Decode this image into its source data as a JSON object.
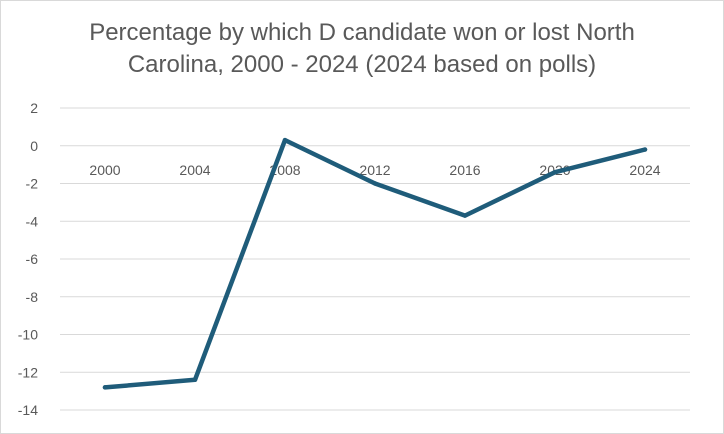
{
  "chart_data": {
    "type": "line",
    "title_lines": [
      "Percentage by which D candidate won or lost North",
      "Carolina, 2000 - 2024 (2024 based on polls)"
    ],
    "xlabel": "",
    "ylabel": "",
    "categories": [
      "2000",
      "2004",
      "2008",
      "2012",
      "2016",
      "2020",
      "2024"
    ],
    "series": [
      {
        "values": [
          -12.8,
          -12.4,
          0.3,
          -2.0,
          -3.7,
          -1.4,
          -0.2
        ]
      }
    ],
    "ylim": [
      -14,
      2
    ],
    "yticks": [
      "2",
      "0",
      "-2",
      "-4",
      "-6",
      "-8",
      "-10",
      "-12",
      "-14"
    ],
    "grid": true,
    "line_color": "#1f5c7a"
  }
}
